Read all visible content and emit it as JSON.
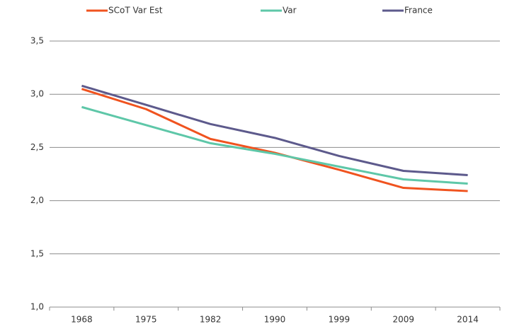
{
  "chart_data": {
    "type": "line",
    "categories": [
      "1968",
      "1975",
      "1982",
      "1990",
      "1999",
      "2009",
      "2014"
    ],
    "series": [
      {
        "name": "SCoT Var Est",
        "color": "#f0531f",
        "values": [
          3.05,
          2.86,
          2.58,
          2.45,
          2.29,
          2.12,
          2.09
        ]
      },
      {
        "name": "Var",
        "color": "#5ec7a8",
        "values": [
          2.88,
          2.71,
          2.54,
          2.44,
          2.32,
          2.2,
          2.16
        ]
      },
      {
        "name": "France",
        "color": "#5d5a8c",
        "values": [
          3.08,
          2.9,
          2.72,
          2.59,
          2.42,
          2.28,
          2.24
        ]
      }
    ],
    "ylim": [
      1,
      3.5
    ],
    "yticks": [
      {
        "value": 1,
        "label": "1,0"
      },
      {
        "value": 1.5,
        "label": "1,5"
      },
      {
        "value": 2,
        "label": "2,0"
      },
      {
        "value": 2.5,
        "label": "2,5"
      },
      {
        "value": 3,
        "label": "3,0"
      },
      {
        "value": 3.5,
        "label": "3,5"
      }
    ],
    "grid": true,
    "legend": "top"
  }
}
